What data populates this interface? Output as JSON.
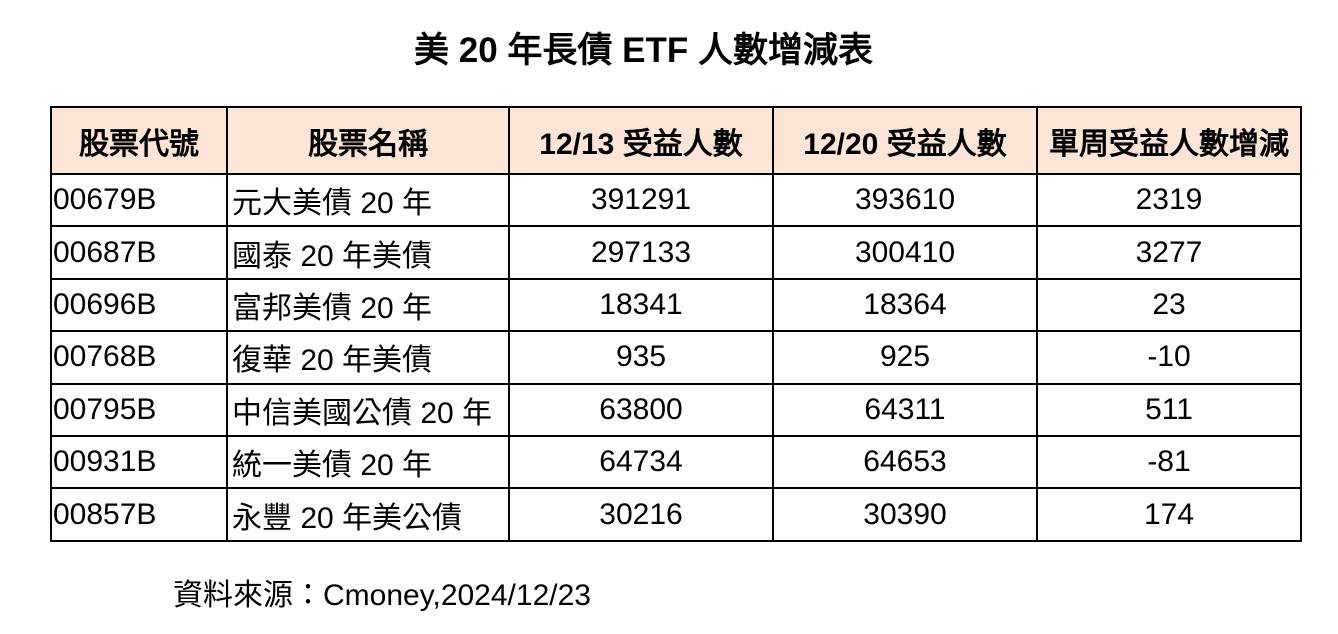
{
  "title": "美 20 年長債 ETF 人數增減表",
  "footer": {
    "source": "資料來源：Cmoney,2024/12/23"
  },
  "colors": {
    "header_bg": "#fce4d6",
    "border": "#000000",
    "text": "#000000",
    "background": "#ffffff"
  },
  "chart_data": {
    "type": "table",
    "title": "美 20 年長債 ETF 人數增減表",
    "columns": [
      "股票代號",
      "股票名稱",
      "12/13 受益人數",
      "12/20 受益人數",
      "單周受益人數增減"
    ],
    "rows": [
      {
        "code": "00679B",
        "name": "元大美債 20 年",
        "holders_1213": "391291",
        "holders_1220": "393610",
        "weekly_change": "2319"
      },
      {
        "code": "00687B",
        "name": "國泰 20 年美債",
        "holders_1213": "297133",
        "holders_1220": "300410",
        "weekly_change": "3277"
      },
      {
        "code": "00696B",
        "name": "富邦美債 20 年",
        "holders_1213": "18341",
        "holders_1220": "18364",
        "weekly_change": "23"
      },
      {
        "code": "00768B",
        "name": "復華 20 年美債",
        "holders_1213": "935",
        "holders_1220": "925",
        "weekly_change": "-10"
      },
      {
        "code": "00795B",
        "name": "中信美國公債 20 年",
        "holders_1213": "63800",
        "holders_1220": "64311",
        "weekly_change": "511"
      },
      {
        "code": "00931B",
        "name": "統一美債 20 年",
        "holders_1213": "64734",
        "holders_1220": "64653",
        "weekly_change": "-81"
      },
      {
        "code": "00857B",
        "name": "永豐 20 年美公債",
        "holders_1213": "30216",
        "holders_1220": "30390",
        "weekly_change": "174"
      }
    ],
    "source": "資料來源：Cmoney,2024/12/23"
  }
}
